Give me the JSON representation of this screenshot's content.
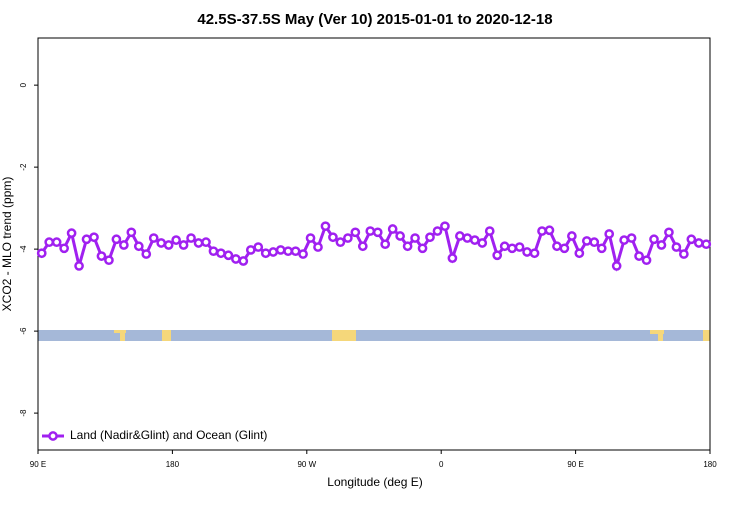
{
  "chart_data": {
    "type": "line",
    "title": "42.5S-37.5S May (Ver 10)   2015-01-01 to 2020-12-18",
    "x_label": "Longitude (deg E)",
    "y_label": "XCO2 - MLO trend (ppm)",
    "xlim": [
      90,
      540
    ],
    "ylim": [
      -8.9,
      1.15
    ],
    "xticks": [
      {
        "value": 90,
        "label": "90 E"
      },
      180,
      {
        "value": 270,
        "label": "90 W"
      },
      {
        "value": 360,
        "label": "0"
      },
      {
        "value": 450,
        "label": "90 E"
      },
      {
        "value": 540,
        "label": "180"
      }
    ],
    "yticks": [
      0,
      -2,
      -4,
      -6,
      -8
    ],
    "legend": "bottom-left",
    "x": [
      92.5,
      97.5,
      102.5,
      107.5,
      112.5,
      117.5,
      122.5,
      127.5,
      132.5,
      137.5,
      142.5,
      147.5,
      152.5,
      157.5,
      162.5,
      167.5,
      172.5,
      177.5,
      182.5,
      187.5,
      192.5,
      197.5,
      202.5,
      207.5,
      212.5,
      217.5,
      222.5,
      227.5,
      232.5,
      237.5,
      242.5,
      247.5,
      252.5,
      257.5,
      262.5,
      267.5,
      272.5,
      277.5,
      282.5,
      287.5,
      292.5,
      297.5,
      302.5,
      307.5,
      312.5,
      317.5,
      322.5,
      327.5,
      332.5,
      337.5,
      342.5,
      347.5,
      352.5,
      357.5,
      362.5,
      367.5,
      372.5,
      377.5,
      382.5,
      387.5,
      392.5,
      397.5,
      402.5,
      407.5,
      412.5,
      417.5,
      422.5,
      427.5,
      432.5,
      437.5,
      442.5,
      447.5,
      452.5,
      457.5,
      462.5,
      467.5,
      472.5,
      477.5,
      482.5,
      487.5,
      492.5,
      497.5,
      502.5,
      507.5,
      512.5,
      517.5,
      522.5,
      527.5,
      532.5,
      537.5
    ],
    "series": [
      {
        "name": "Land (Nadir&Glint) and Ocean (Glint)",
        "color": "#a020f0",
        "values": [
          -4.1,
          -3.83,
          -3.83,
          -3.98,
          -3.61,
          -4.41,
          -3.76,
          -3.71,
          -4.17,
          -4.27,
          -3.76,
          -3.9,
          -3.59,
          -3.93,
          -4.12,
          -3.73,
          -3.85,
          -3.9,
          -3.78,
          -3.9,
          -3.73,
          -3.85,
          -3.83,
          -4.05,
          -4.1,
          -4.15,
          -4.24,
          -4.29,
          -4.02,
          -3.95,
          -4.1,
          -4.07,
          -4.02,
          -4.05,
          -4.05,
          -4.12,
          -3.73,
          -3.95,
          -3.44,
          -3.71,
          -3.83,
          -3.73,
          -3.59,
          -3.93,
          -3.56,
          -3.59,
          -3.88,
          -3.51,
          -3.68,
          -3.93,
          -3.73,
          -3.98,
          -3.71,
          -3.56,
          -3.44,
          -4.22,
          -3.68,
          -3.73,
          -3.78,
          -3.85,
          -3.56,
          -4.15,
          -3.93,
          -3.98,
          -3.95,
          -4.07,
          -4.1,
          -3.56,
          -3.54,
          -3.93,
          -3.98,
          -3.68,
          -4.1,
          -3.8,
          -3.83,
          -3.98,
          -3.63,
          -4.41,
          -3.78,
          -3.73,
          -4.17,
          -4.27,
          -3.76,
          -3.9,
          -3.59,
          -3.95,
          -4.12,
          -3.76,
          -3.85,
          -3.88
        ]
      }
    ]
  }
}
